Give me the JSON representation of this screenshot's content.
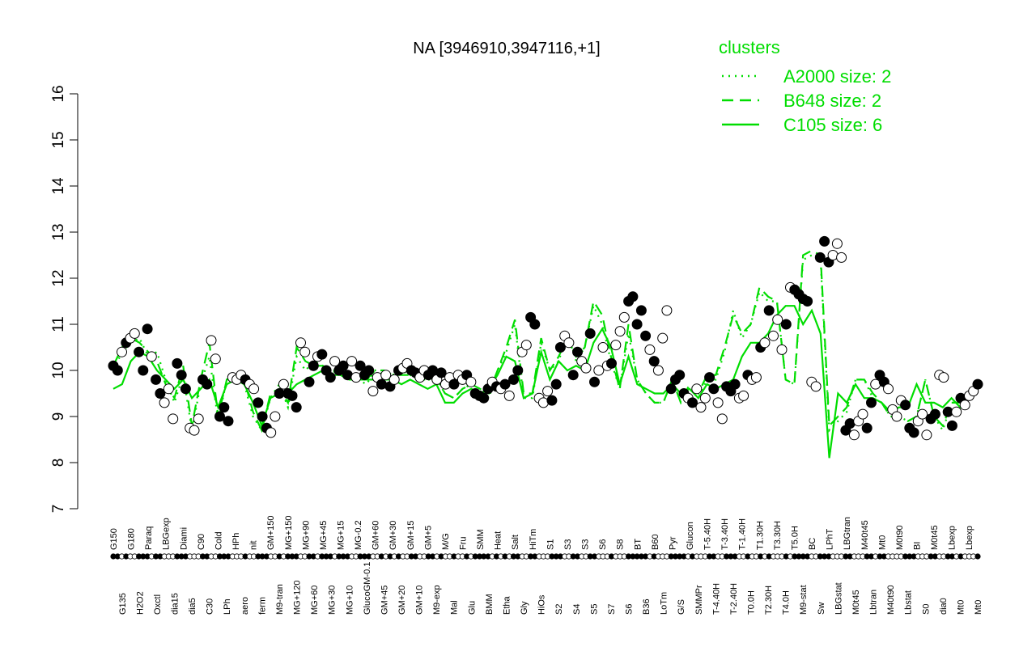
{
  "chart_data": {
    "type": "line",
    "title": "NA [3946910,3947116,+1]",
    "xlabel": "",
    "ylabel": "",
    "ylim": [
      7,
      16
    ],
    "yticks": [
      7,
      8,
      9,
      10,
      11,
      12,
      13,
      14,
      15,
      16
    ],
    "legend": {
      "title": "clusters",
      "position": "top-right",
      "entries": [
        {
          "label": "A2000 size: 2",
          "style": "dotted"
        },
        {
          "label": "B648 size: 2",
          "style": "dashed"
        },
        {
          "label": "C105 size: 6",
          "style": "solid"
        }
      ]
    },
    "colors": {
      "lines": "#00dd00",
      "points_filled": "#000000",
      "points_open": "#ffffff"
    },
    "xtick_labels": [
      "G150",
      "G135",
      "G180",
      "H2O2",
      "Paraq",
      "Oxctl",
      "LBGexp",
      "dia15",
      "Diami",
      "dia5",
      "C90",
      "C30",
      "Cold",
      "LPh",
      "HPh",
      "aero",
      "nit",
      "ferm",
      "GM+150",
      "M9-tran",
      "MG+150",
      "MG+120",
      "MG+90",
      "MG+60",
      "MG+45",
      "MG+30",
      "MG+15",
      "MG+10",
      "MG-0.2",
      "GlucoGM-0.1",
      "GM+60",
      "GM+45",
      "GM+30",
      "GM+20",
      "GM+15",
      "GM+10",
      "GM+5",
      "M9-exp",
      "M/G",
      "Mal",
      "Fru",
      "Glu",
      "SMM",
      "BMM",
      "Heat",
      "Etha",
      "Salt",
      "Gly",
      "HiTm",
      "HiOs",
      "S1",
      "S2",
      "S3",
      "S4",
      "S3",
      "S5",
      "S6",
      "S7",
      "S8",
      "S6",
      "BT",
      "B36",
      "B60",
      "LoTm",
      "Pyr",
      "G/S",
      "Glucon",
      "SMMPr",
      "T-5.40H",
      "T-4.40H",
      "T-3.40H",
      "T-2.40H",
      "T-1.40H",
      "T0.0H",
      "T1.30H",
      "T2.30H",
      "T3.30H",
      "T4.0H",
      "T5.0H",
      "M9-stat",
      "BC",
      "Sw",
      "LPhT",
      "LBGstat",
      "LBGtran",
      "M0t45",
      "M40t45",
      "Lbtran",
      "Mt0",
      "M40t90",
      "M0t90",
      "Lbstat",
      "BI",
      "S0",
      "M0t45",
      "dia0",
      "Lbexp",
      "Mt0",
      "Lbexp",
      "Mt0"
    ],
    "series": [
      {
        "style": "solid",
        "values": [
          9.6,
          9.7,
          10.2,
          10.4,
          10.3,
          10.0,
          9.8,
          9.6,
          9.8,
          9.4,
          9.6,
          9.8,
          9.2,
          9.7,
          9.8,
          9.7,
          9.3,
          8.8,
          9.4,
          9.5,
          9.5,
          9.7,
          9.8,
          9.9,
          10.0,
          9.9,
          9.9,
          9.8,
          9.8,
          9.8,
          9.8,
          9.8,
          9.8,
          9.7,
          9.8,
          9.7,
          9.6,
          9.7,
          9.3,
          9.3,
          9.5,
          9.6,
          9.5,
          9.6,
          9.9,
          10.3,
          10.2,
          9.4,
          9.5,
          10.4,
          9.8,
          10.2,
          10.0,
          10.1,
          10.0,
          10.6,
          10.9,
          10.5,
          9.7,
          10.3,
          9.7,
          9.6,
          9.5,
          9.5,
          9.7,
          9.5,
          9.6,
          9.4,
          9.7,
          9.6,
          9.7,
          9.8,
          10.3,
          10.6,
          10.6,
          10.8,
          11.2,
          11.4,
          11.4,
          11.0,
          11.3,
          10.8,
          8.1,
          9.5,
          9.3,
          9.7,
          9.4,
          9.4,
          9.3,
          9.1,
          9.2,
          9.2,
          9.7,
          9.3,
          9.3,
          9.2,
          9.4,
          9.2,
          9.4,
          9.6
        ]
      },
      {
        "style": "dashed",
        "values": [
          10.1,
          10.5,
          10.7,
          10.6,
          10.4,
          10.2,
          9.7,
          9.4,
          10.1,
          8.8,
          9.8,
          10.6,
          9.0,
          9.8,
          9.9,
          9.8,
          9.1,
          8.7,
          9.5,
          9.6,
          9.3,
          10.5,
          10.2,
          10.1,
          10.1,
          10.0,
          10.0,
          9.9,
          9.8,
          9.8,
          10.0,
          10.0,
          9.9,
          9.9,
          9.9,
          9.8,
          9.8,
          9.8,
          9.5,
          9.4,
          9.6,
          9.7,
          9.6,
          9.5,
          10.0,
          10.5,
          11.1,
          9.5,
          9.5,
          10.7,
          10.0,
          10.3,
          10.7,
          10.3,
          10.5,
          11.5,
          11.2,
          10.3,
          9.6,
          11.0,
          9.8,
          9.5,
          9.3,
          9.3,
          9.8,
          9.3,
          9.7,
          9.5,
          9.9,
          9.9,
          10.5,
          11.2,
          10.8,
          11.0,
          11.8,
          11.6,
          11.5,
          9.8,
          9.7,
          12.5,
          12.6,
          12.5,
          8.8,
          9.0,
          9.2,
          9.8,
          9.8,
          9.5,
          9.3,
          9.0,
          9.0,
          8.9,
          9.0,
          9.8,
          9.0,
          8.8,
          9.3,
          9.3,
          9.4,
          9.6
        ]
      },
      {
        "style": "dotted",
        "values": [
          10.0,
          10.4,
          10.6,
          10.7,
          10.3,
          10.4,
          9.8,
          9.3,
          9.9,
          8.7,
          9.7,
          10.3,
          8.9,
          9.8,
          9.8,
          9.7,
          9.0,
          8.7,
          9.4,
          9.7,
          9.2,
          10.3,
          10.0,
          10.2,
          10.1,
          10.0,
          9.9,
          9.9,
          9.8,
          9.7,
          10.0,
          9.9,
          9.9,
          10.0,
          9.9,
          9.8,
          9.8,
          9.8,
          9.5,
          9.4,
          9.6,
          9.7,
          9.6,
          9.4,
          10.0,
          10.4,
          11.0,
          9.4,
          9.4,
          10.6,
          10.0,
          10.2,
          10.8,
          10.2,
          10.5,
          11.4,
          11.0,
          10.2,
          9.6,
          10.8,
          9.8,
          9.5,
          9.3,
          9.3,
          9.8,
          9.3,
          9.6,
          9.4,
          9.8,
          9.8,
          10.4,
          11.3,
          10.7,
          11.0,
          11.7,
          11.5,
          11.5,
          9.8,
          9.7,
          12.4,
          12.5,
          12.4,
          8.7,
          8.9,
          9.1,
          9.8,
          9.8,
          9.4,
          9.3,
          9.0,
          9.0,
          8.9,
          9.0,
          9.8,
          9.0,
          8.7,
          9.3,
          9.3,
          9.4,
          9.6
        ]
      }
    ],
    "points": [
      {
        "y": 10.1,
        "filled": true
      },
      {
        "y": 10.0,
        "filled": true
      },
      {
        "y": 10.4,
        "filled": false
      },
      {
        "y": 10.6,
        "filled": true
      },
      {
        "y": 10.7,
        "filled": false
      },
      {
        "y": 10.8,
        "filled": false
      },
      {
        "y": 10.4,
        "filled": true
      },
      {
        "y": 10.0,
        "filled": true
      },
      {
        "y": 10.9,
        "filled": true
      },
      {
        "y": 10.3,
        "filled": false
      },
      {
        "y": 9.8,
        "filled": true
      },
      {
        "y": 9.5,
        "filled": true
      },
      {
        "y": 9.3,
        "filled": false
      },
      {
        "y": 9.6,
        "filled": false
      },
      {
        "y": 8.95,
        "filled": false
      },
      {
        "y": 10.15,
        "filled": true
      },
      {
        "y": 9.9,
        "filled": true
      },
      {
        "y": 9.6,
        "filled": true
      },
      {
        "y": 8.75,
        "filled": false
      },
      {
        "y": 8.7,
        "filled": false
      },
      {
        "y": 8.95,
        "filled": false
      },
      {
        "y": 9.8,
        "filled": true
      },
      {
        "y": 9.7,
        "filled": true
      },
      {
        "y": 10.65,
        "filled": false
      },
      {
        "y": 10.25,
        "filled": false
      },
      {
        "y": 9.0,
        "filled": true
      },
      {
        "y": 9.2,
        "filled": true
      },
      {
        "y": 8.9,
        "filled": true
      },
      {
        "y": 9.85,
        "filled": false
      },
      {
        "y": 9.8,
        "filled": false
      },
      {
        "y": 9.9,
        "filled": false
      },
      {
        "y": 9.8,
        "filled": true
      },
      {
        "y": 9.7,
        "filled": false
      },
      {
        "y": 9.6,
        "filled": false
      },
      {
        "y": 9.3,
        "filled": true
      },
      {
        "y": 9.0,
        "filled": true
      },
      {
        "y": 8.75,
        "filled": true
      },
      {
        "y": 8.65,
        "filled": false
      },
      {
        "y": 9.0,
        "filled": false
      },
      {
        "y": 9.5,
        "filled": true
      },
      {
        "y": 9.7,
        "filled": false
      },
      {
        "y": 9.5,
        "filled": true
      },
      {
        "y": 9.45,
        "filled": true
      },
      {
        "y": 9.2,
        "filled": true
      },
      {
        "y": 10.6,
        "filled": false
      },
      {
        "y": 10.4,
        "filled": false
      },
      {
        "y": 9.75,
        "filled": true
      },
      {
        "y": 10.1,
        "filled": true
      },
      {
        "y": 10.3,
        "filled": false
      },
      {
        "y": 10.35,
        "filled": true
      },
      {
        "y": 10.0,
        "filled": true
      },
      {
        "y": 9.85,
        "filled": true
      },
      {
        "y": 10.2,
        "filled": false
      },
      {
        "y": 10.0,
        "filled": true
      },
      {
        "y": 10.1,
        "filled": true
      },
      {
        "y": 9.9,
        "filled": true
      },
      {
        "y": 10.2,
        "filled": false
      },
      {
        "y": 9.85,
        "filled": false
      },
      {
        "y": 10.1,
        "filled": true
      },
      {
        "y": 9.9,
        "filled": true
      },
      {
        "y": 10.0,
        "filled": true
      },
      {
        "y": 9.55,
        "filled": false
      },
      {
        "y": 9.85,
        "filled": false
      },
      {
        "y": 9.7,
        "filled": true
      },
      {
        "y": 9.9,
        "filled": false
      },
      {
        "y": 9.65,
        "filled": true
      },
      {
        "y": 9.8,
        "filled": false
      },
      {
        "y": 10.0,
        "filled": true
      },
      {
        "y": 10.05,
        "filled": false
      },
      {
        "y": 10.15,
        "filled": false
      },
      {
        "y": 10.0,
        "filled": true
      },
      {
        "y": 9.95,
        "filled": true
      },
      {
        "y": 9.85,
        "filled": false
      },
      {
        "y": 10.0,
        "filled": false
      },
      {
        "y": 9.9,
        "filled": true
      },
      {
        "y": 10.0,
        "filled": true
      },
      {
        "y": 9.8,
        "filled": false
      },
      {
        "y": 9.95,
        "filled": true
      },
      {
        "y": 9.7,
        "filled": false
      },
      {
        "y": 9.85,
        "filled": false
      },
      {
        "y": 9.7,
        "filled": true
      },
      {
        "y": 9.9,
        "filled": false
      },
      {
        "y": 9.8,
        "filled": false
      },
      {
        "y": 9.9,
        "filled": true
      },
      {
        "y": 9.75,
        "filled": false
      },
      {
        "y": 9.5,
        "filled": true
      },
      {
        "y": 9.45,
        "filled": true
      },
      {
        "y": 9.4,
        "filled": true
      },
      {
        "y": 9.6,
        "filled": true
      },
      {
        "y": 9.75,
        "filled": false
      },
      {
        "y": 9.65,
        "filled": true
      },
      {
        "y": 9.6,
        "filled": false
      },
      {
        "y": 9.7,
        "filled": true
      },
      {
        "y": 9.45,
        "filled": false
      },
      {
        "y": 9.8,
        "filled": true
      },
      {
        "y": 10.0,
        "filled": true
      },
      {
        "y": 10.4,
        "filled": false
      },
      {
        "y": 10.55,
        "filled": false
      },
      {
        "y": 11.15,
        "filled": true
      },
      {
        "y": 11.0,
        "filled": true
      },
      {
        "y": 9.4,
        "filled": false
      },
      {
        "y": 9.3,
        "filled": false
      },
      {
        "y": 9.55,
        "filled": false
      },
      {
        "y": 9.35,
        "filled": true
      },
      {
        "y": 9.7,
        "filled": true
      },
      {
        "y": 10.5,
        "filled": true
      },
      {
        "y": 10.75,
        "filled": false
      },
      {
        "y": 10.6,
        "filled": false
      },
      {
        "y": 9.9,
        "filled": true
      },
      {
        "y": 10.4,
        "filled": true
      },
      {
        "y": 10.2,
        "filled": false
      },
      {
        "y": 10.05,
        "filled": false
      },
      {
        "y": 10.8,
        "filled": true
      },
      {
        "y": 9.75,
        "filled": true
      },
      {
        "y": 10.0,
        "filled": false
      },
      {
        "y": 10.5,
        "filled": false
      },
      {
        "y": 10.1,
        "filled": false
      },
      {
        "y": 10.15,
        "filled": true
      },
      {
        "y": 10.55,
        "filled": false
      },
      {
        "y": 10.85,
        "filled": false
      },
      {
        "y": 11.15,
        "filled": false
      },
      {
        "y": 11.5,
        "filled": true
      },
      {
        "y": 11.6,
        "filled": true
      },
      {
        "y": 11.0,
        "filled": true
      },
      {
        "y": 11.3,
        "filled": true
      },
      {
        "y": 10.75,
        "filled": true
      },
      {
        "y": 10.45,
        "filled": false
      },
      {
        "y": 10.2,
        "filled": true
      },
      {
        "y": 10.0,
        "filled": false
      },
      {
        "y": 10.7,
        "filled": false
      },
      {
        "y": 11.3,
        "filled": false
      },
      {
        "y": 9.6,
        "filled": true
      },
      {
        "y": 9.8,
        "filled": true
      },
      {
        "y": 9.9,
        "filled": true
      },
      {
        "y": 9.5,
        "filled": true
      },
      {
        "y": 9.4,
        "filled": false
      },
      {
        "y": 9.3,
        "filled": true
      },
      {
        "y": 9.6,
        "filled": false
      },
      {
        "y": 9.2,
        "filled": false
      },
      {
        "y": 9.4,
        "filled": false
      },
      {
        "y": 9.85,
        "filled": true
      },
      {
        "y": 9.6,
        "filled": true
      },
      {
        "y": 9.3,
        "filled": false
      },
      {
        "y": 8.95,
        "filled": false
      },
      {
        "y": 9.65,
        "filled": true
      },
      {
        "y": 9.55,
        "filled": true
      },
      {
        "y": 9.7,
        "filled": true
      },
      {
        "y": 9.4,
        "filled": false
      },
      {
        "y": 9.45,
        "filled": false
      },
      {
        "y": 9.9,
        "filled": true
      },
      {
        "y": 9.8,
        "filled": false
      },
      {
        "y": 9.85,
        "filled": false
      },
      {
        "y": 10.5,
        "filled": true
      },
      {
        "y": 10.6,
        "filled": false
      },
      {
        "y": 11.3,
        "filled": true
      },
      {
        "y": 10.75,
        "filled": false
      },
      {
        "y": 11.1,
        "filled": false
      },
      {
        "y": 10.45,
        "filled": false
      },
      {
        "y": 11.0,
        "filled": true
      },
      {
        "y": 11.8,
        "filled": false
      },
      {
        "y": 11.75,
        "filled": true
      },
      {
        "y": 11.65,
        "filled": true
      },
      {
        "y": 11.55,
        "filled": true
      },
      {
        "y": 11.5,
        "filled": true
      },
      {
        "y": 9.75,
        "filled": false
      },
      {
        "y": 9.65,
        "filled": false
      },
      {
        "y": 12.45,
        "filled": true
      },
      {
        "y": 12.8,
        "filled": true
      },
      {
        "y": 12.35,
        "filled": true
      },
      {
        "y": 12.5,
        "filled": false
      },
      {
        "y": 12.75,
        "filled": false
      },
      {
        "y": 12.45,
        "filled": false
      },
      {
        "y": 8.7,
        "filled": true
      },
      {
        "y": 8.85,
        "filled": true
      },
      {
        "y": 8.6,
        "filled": false
      },
      {
        "y": 8.9,
        "filled": false
      },
      {
        "y": 9.05,
        "filled": false
      },
      {
        "y": 8.75,
        "filled": true
      },
      {
        "y": 9.3,
        "filled": true
      },
      {
        "y": 9.7,
        "filled": false
      },
      {
        "y": 9.9,
        "filled": true
      },
      {
        "y": 9.75,
        "filled": true
      },
      {
        "y": 9.6,
        "filled": false
      },
      {
        "y": 9.15,
        "filled": false
      },
      {
        "y": 9.0,
        "filled": false
      },
      {
        "y": 9.35,
        "filled": false
      },
      {
        "y": 9.25,
        "filled": true
      },
      {
        "y": 8.75,
        "filled": true
      },
      {
        "y": 8.65,
        "filled": true
      },
      {
        "y": 8.9,
        "filled": false
      },
      {
        "y": 9.05,
        "filled": false
      },
      {
        "y": 8.6,
        "filled": false
      },
      {
        "y": 8.95,
        "filled": true
      },
      {
        "y": 9.05,
        "filled": true
      },
      {
        "y": 9.9,
        "filled": false
      },
      {
        "y": 9.85,
        "filled": false
      },
      {
        "y": 9.1,
        "filled": true
      },
      {
        "y": 8.8,
        "filled": true
      },
      {
        "y": 9.1,
        "filled": false
      },
      {
        "y": 9.4,
        "filled": true
      },
      {
        "y": 9.25,
        "filled": false
      },
      {
        "y": 9.45,
        "filled": false
      },
      {
        "y": 9.55,
        "filled": false
      },
      {
        "y": 9.7,
        "filled": true
      }
    ]
  }
}
